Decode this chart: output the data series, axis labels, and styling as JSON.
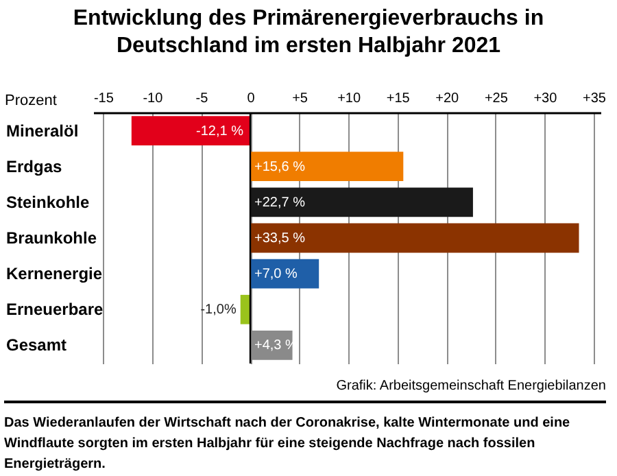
{
  "chart_data": {
    "type": "bar",
    "orientation": "horizontal",
    "title": "Entwicklung des Primärenergieverbrauchs in Deutschland im ersten Halbjahr 2021",
    "xlabel": "Prozent",
    "categories": [
      "Mineralöl",
      "Erdgas",
      "Steinkohle",
      "Braunkohle",
      "Kernenergie",
      "Erneuerbare",
      "Gesamt"
    ],
    "values": [
      -12.1,
      15.6,
      22.7,
      33.5,
      7.0,
      -1.0,
      4.3
    ],
    "colors": [
      "#e2001a",
      "#f07d00",
      "#1a1a1a",
      "#8b3300",
      "#1f5fa8",
      "#9ac31c",
      "#8a8a8a"
    ],
    "value_labels": [
      "-12,1 %",
      "+15,6 %",
      "+22,7 %",
      "+33,5 %",
      "+7,0 %",
      "-1,0%",
      "+4,3 %"
    ],
    "xlim": [
      -16,
      35.7
    ],
    "xticks": [
      -15,
      -10,
      -5,
      0,
      {
        "value": 5,
        "label": "+5"
      },
      {
        "value": 10,
        "label": "+10"
      },
      {
        "value": 15,
        "label": "+15"
      },
      {
        "value": 20,
        "label": "+20"
      },
      {
        "value": 25,
        "label": "+25"
      },
      {
        "value": 30,
        "label": "+30"
      },
      {
        "value": 35,
        "label": "+35"
      }
    ],
    "grid": "x",
    "ref_lines": [
      {
        "axis": "x",
        "value": 0,
        "color": "#000000"
      }
    ],
    "annotations": [
      "Grafik: Arbeitsgemeinschaft Energiebilanzen",
      "Das Wiederanlaufen der Wirtschaft nach der Coronakrise, kalte Wintermonate und eine Windflaute sorgten im ersten Halbjahr für eine steigende Nachfrage nach fossilen Energieträgern."
    ]
  }
}
